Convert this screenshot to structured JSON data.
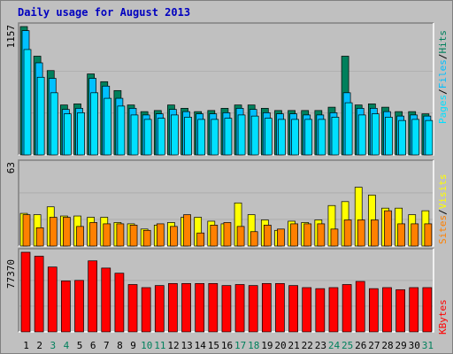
{
  "title": "Daily usage for August 2013",
  "colors": {
    "hits": "#00805c",
    "files": "#00c0ff",
    "pages": "#00e0ff",
    "visits": "#ffff00",
    "sites": "#ff8000",
    "kbytes": "#ff0000",
    "panel_bg": "#c0c0c0",
    "weekday_label": "#000000",
    "weekend_label": "#00805c"
  },
  "side_labels": {
    "pages": "Pages",
    "files": "Files",
    "hits": "Hits",
    "sites": "Sites",
    "visits": "Visits",
    "kbytes": "KBytes",
    "separator": "/"
  },
  "chart_data": {
    "type": "bar",
    "x": [
      1,
      2,
      3,
      4,
      5,
      6,
      7,
      8,
      9,
      10,
      11,
      12,
      13,
      14,
      15,
      16,
      17,
      18,
      19,
      20,
      21,
      22,
      23,
      24,
      25,
      26,
      27,
      28,
      29,
      30,
      31
    ],
    "weekend_days": [
      3,
      4,
      10,
      11,
      17,
      18,
      24,
      25,
      31
    ],
    "panels": [
      {
        "id": "hits_files_pages",
        "ymax_label": "1157",
        "ymax": 1157,
        "series": [
          {
            "name": "Hits",
            "values": [
              1157,
              890,
              760,
              450,
              460,
              730,
              660,
              580,
              450,
              390,
              400,
              450,
              420,
              390,
              400,
              420,
              450,
              450,
              420,
              400,
              400,
              400,
              400,
              430,
              890,
              450,
              460,
              430,
              390,
              390,
              370
            ]
          },
          {
            "name": "Files",
            "values": [
              1120,
              830,
              690,
              410,
              420,
              690,
              620,
              510,
              420,
              360,
              370,
              410,
              390,
              370,
              370,
              380,
              420,
              410,
              380,
              370,
              370,
              360,
              360,
              380,
              560,
              420,
              420,
              390,
              350,
              360,
              350
            ]
          },
          {
            "name": "Pages",
            "values": [
              950,
              700,
              560,
              370,
              380,
              560,
              510,
              440,
              360,
              320,
              330,
              360,
              340,
              320,
              320,
              330,
              360,
              350,
              330,
              320,
              320,
              320,
              320,
              340,
              470,
              360,
              370,
              340,
              310,
              320,
              310
            ]
          }
        ]
      },
      {
        "id": "sites_visits",
        "ymax_label": "63",
        "ymax": 63,
        "series": [
          {
            "name": "Visits",
            "values": [
              25,
              24,
              30,
              23,
              23,
              22,
              22,
              18,
              17,
              13,
              16,
              18,
              22,
              22,
              19,
              17,
              33,
              24,
              20,
              12,
              19,
              18,
              20,
              31,
              34,
              45,
              39,
              29,
              29,
              24,
              27
            ]
          },
          {
            "name": "Sites",
            "values": [
              24,
              14,
              22,
              22,
              15,
              18,
              17,
              17,
              16,
              12,
              17,
              15,
              24,
              10,
              16,
              18,
              15,
              11,
              16,
              13,
              17,
              17,
              17,
              13,
              20,
              20,
              20,
              27,
              17,
              17,
              17
            ]
          }
        ]
      },
      {
        "id": "kbytes",
        "ymax_label": "77370",
        "ymax": 77370,
        "series": [
          {
            "name": "KBytes",
            "values": [
              77370,
              73500,
              63000,
              49500,
              50000,
              69000,
              62000,
              57000,
              46000,
              43000,
              45000,
              47000,
              47000,
              47000,
              47000,
              45000,
              46000,
              45000,
              47000,
              47000,
              45000,
              43000,
              42000,
              43000,
              46000,
              49000,
              42000,
              43000,
              41000,
              43000,
              43000
            ]
          }
        ]
      }
    ]
  }
}
